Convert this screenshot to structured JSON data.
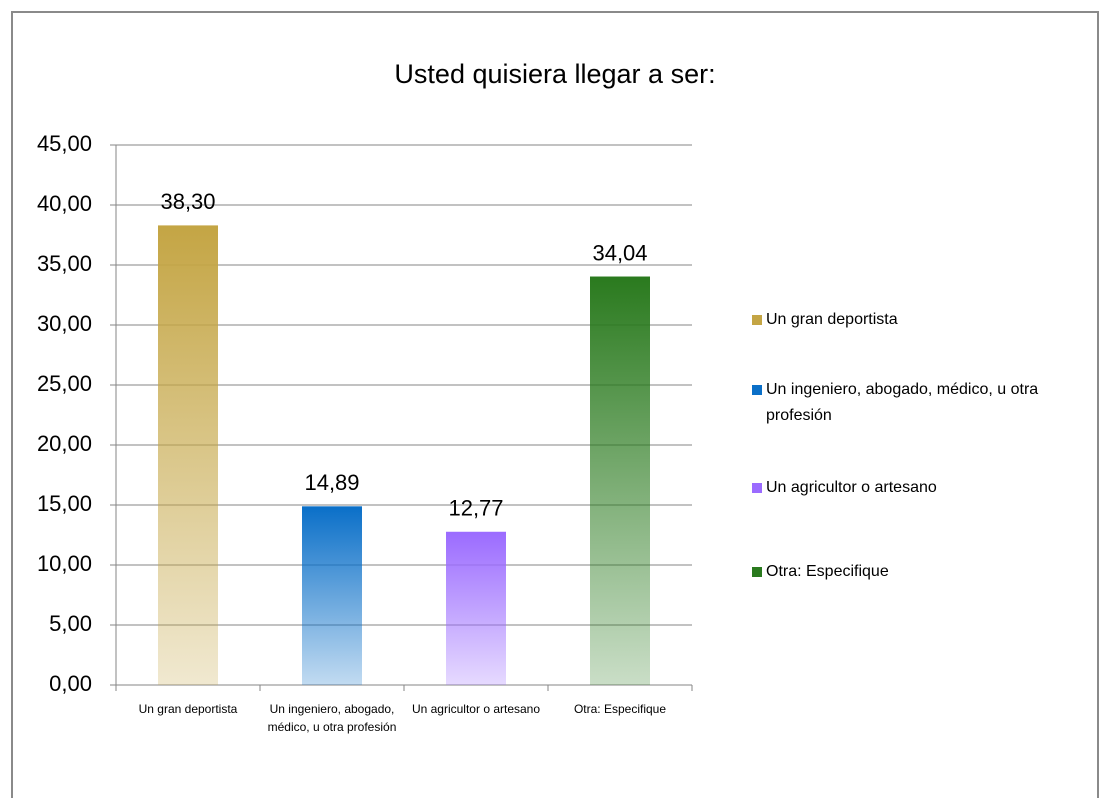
{
  "chart_data": {
    "type": "bar",
    "title": "Usted quisiera llegar a ser:",
    "categories": [
      "Un gran deportista",
      "Un ingeniero, abogado, médico, u otra profesión",
      "Un agricultor o artesano",
      "Otra: Especifique"
    ],
    "values": [
      38.3,
      14.89,
      12.77,
      34.04
    ],
    "value_labels": [
      "38,30",
      "14,89",
      "12,77",
      "34,04"
    ],
    "colors": [
      "#c4a544",
      "#0a6fc8",
      "#9b6bff",
      "#2a7a1e"
    ],
    "ylim": [
      0,
      45
    ],
    "yticks": [
      {
        "value": 0,
        "label": "0,00"
      },
      {
        "value": 5,
        "label": "5,00"
      },
      {
        "value": 10,
        "label": "10,00"
      },
      {
        "value": 15,
        "label": "15,00"
      },
      {
        "value": 20,
        "label": "20,00"
      },
      {
        "value": 25,
        "label": "25,00"
      },
      {
        "value": 30,
        "label": "30,00"
      },
      {
        "value": 35,
        "label": "35,00"
      },
      {
        "value": 40,
        "label": "40,00"
      },
      {
        "value": 45,
        "label": "45,00"
      }
    ],
    "grid": true,
    "legend": "right"
  }
}
